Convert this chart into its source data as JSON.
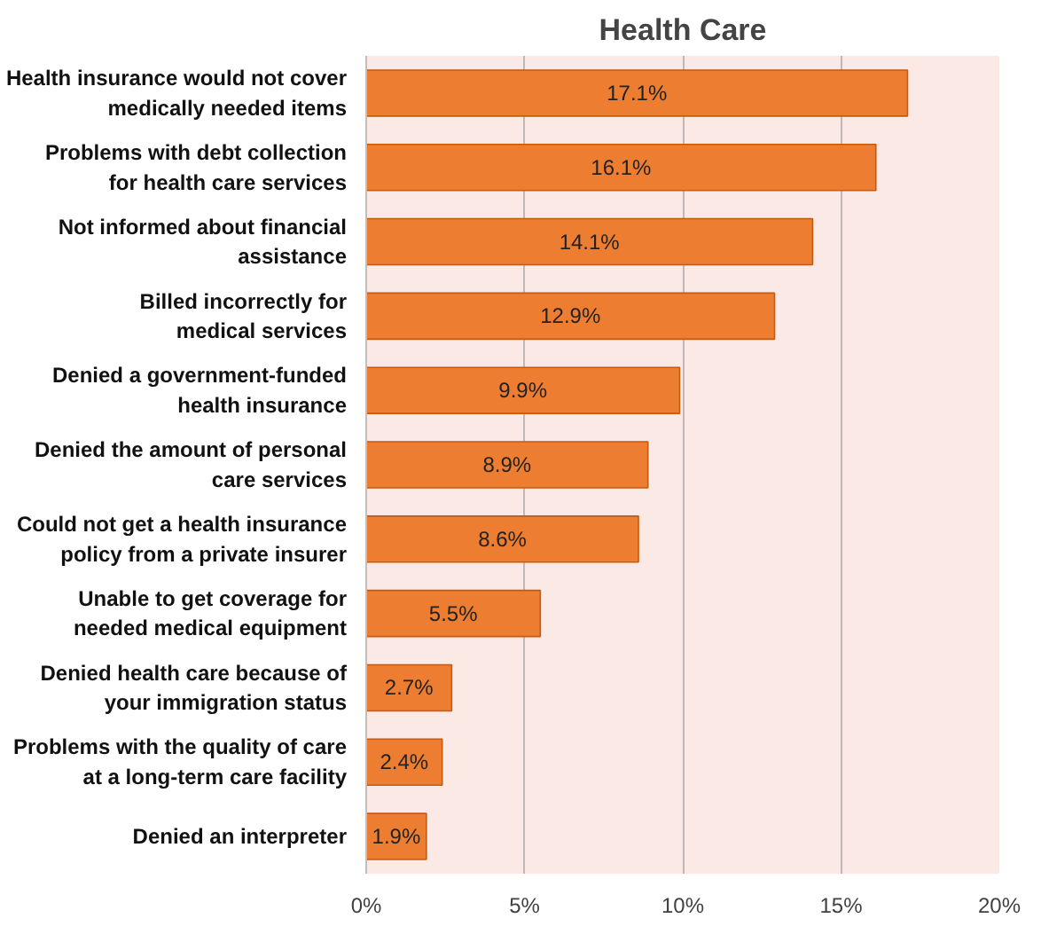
{
  "chart_data": {
    "type": "bar",
    "orientation": "horizontal",
    "title": "Health Care",
    "categories": [
      "Health insurance would not cover\nmedically needed items",
      "Problems with debt collection\nfor health care services",
      "Not informed about financial\nassistance",
      "Billed incorrectly for\nmedical services",
      "Denied a government-funded\nhealth insurance",
      "Denied the amount of personal\ncare services",
      "Could not get a health insurance\npolicy from a private insurer",
      "Unable to get coverage for\nneeded medical equipment",
      "Denied health care because of\nyour immigration status",
      "Problems with the quality of care\nat a long-term care facility",
      "Denied an interpreter"
    ],
    "values": [
      17.1,
      16.1,
      14.1,
      12.9,
      9.9,
      8.9,
      8.6,
      5.5,
      2.7,
      2.4,
      1.9
    ],
    "value_labels": [
      "17.1%",
      "16.1%",
      "14.1%",
      "12.9%",
      "9.9%",
      "8.9%",
      "8.6%",
      "5.5%",
      "2.7%",
      "2.4%",
      "1.9%"
    ],
    "color": "#ed7d31",
    "xlim": [
      0,
      20
    ],
    "xticks": [
      {
        "value": 0,
        "label": "0%"
      },
      {
        "value": 5,
        "label": "5%"
      },
      {
        "value": 10,
        "label": "10%"
      },
      {
        "value": 15,
        "label": "15%"
      },
      {
        "value": 20,
        "label": "20%"
      }
    ],
    "grid": "x"
  }
}
